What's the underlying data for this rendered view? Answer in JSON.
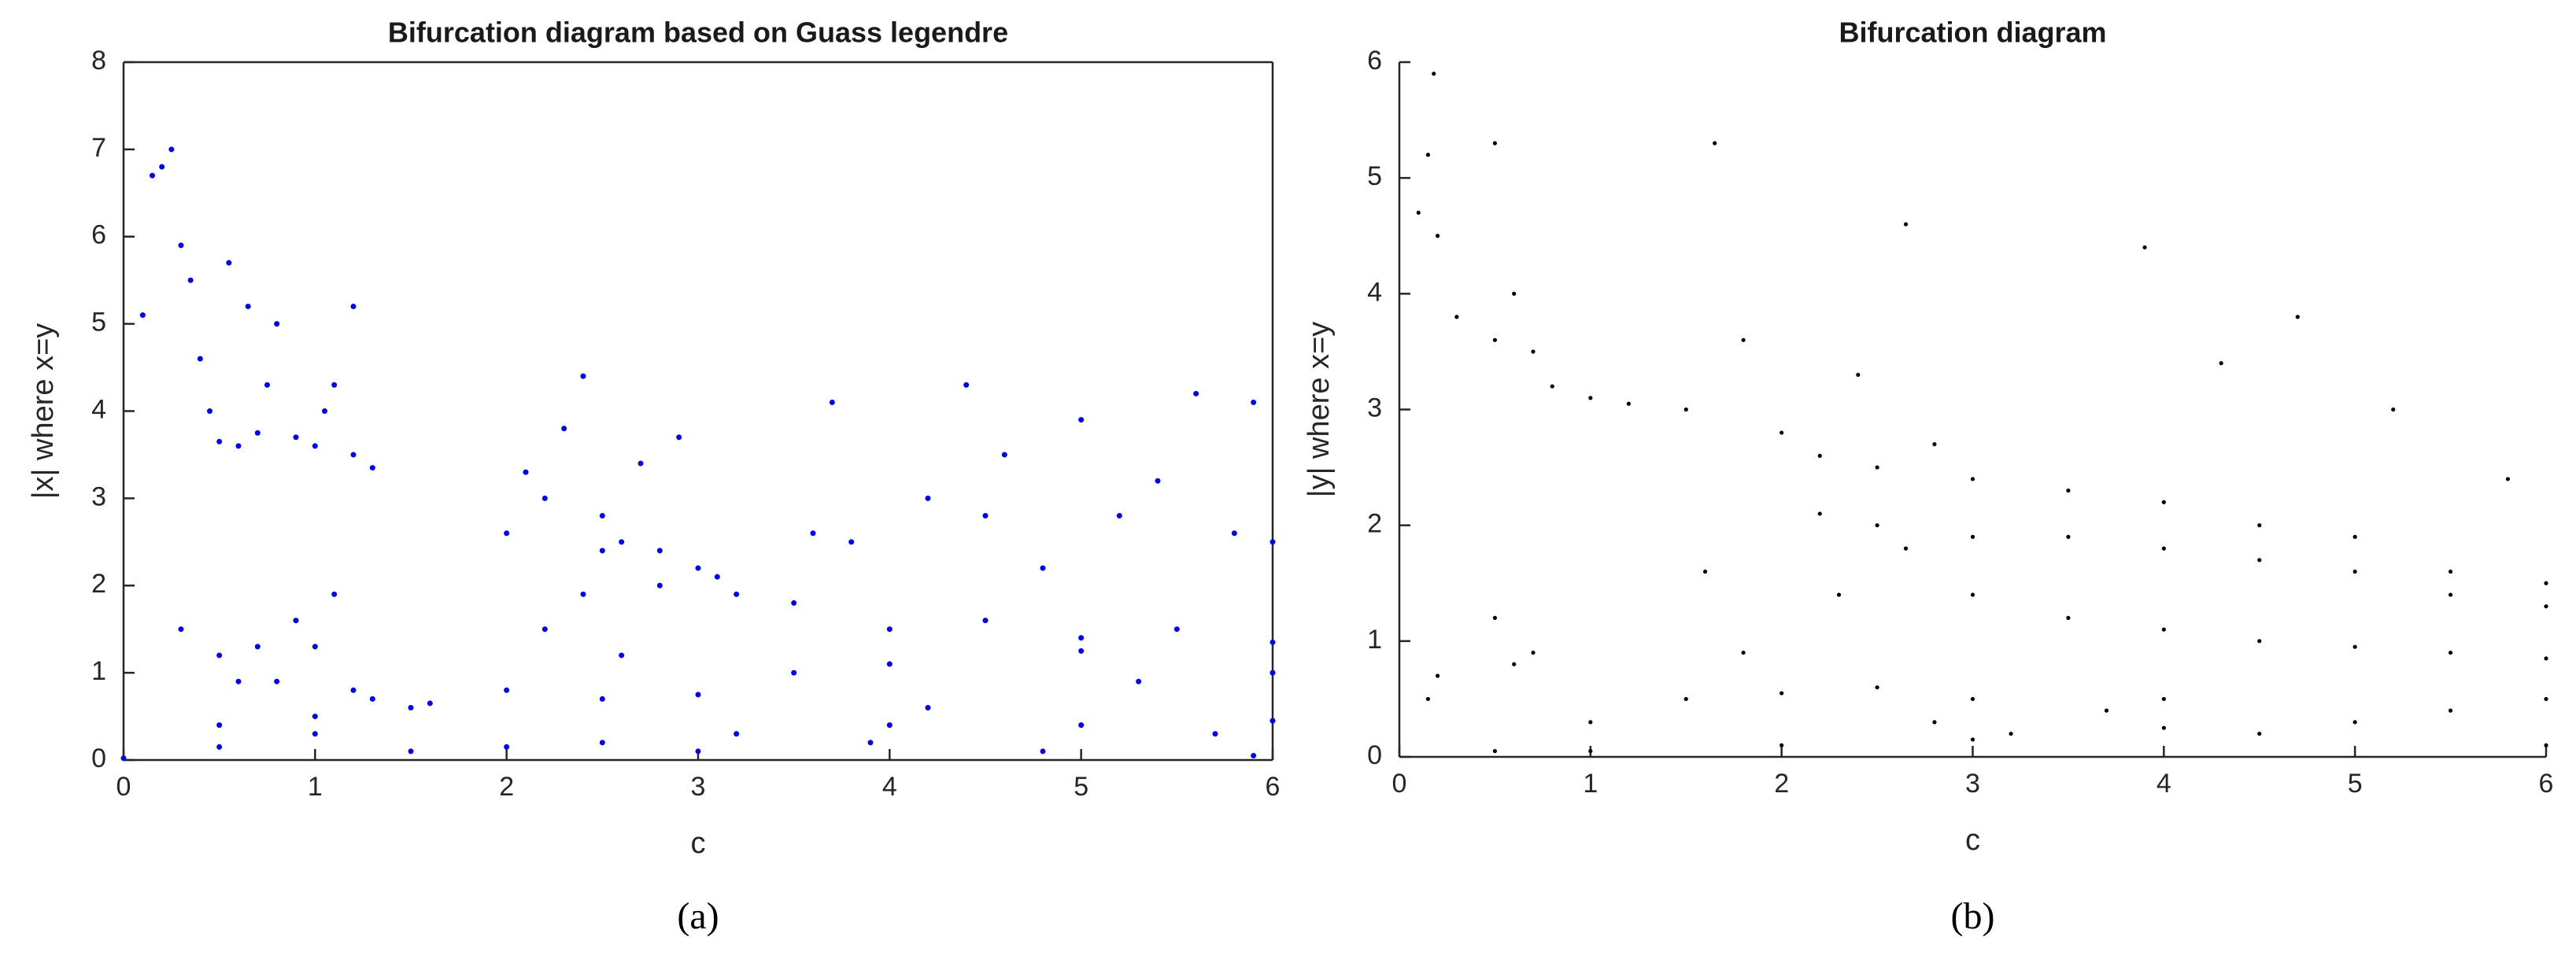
{
  "chart_data": [
    {
      "type": "scatter",
      "title": "Bifurcation diagram based on Guass legendre",
      "x_label": "c",
      "y_label": "|x| where x=y",
      "caption": "(a)",
      "color": "#0000ff",
      "box": true,
      "xlim": [
        0,
        6
      ],
      "xticks": [
        0,
        1,
        2,
        3,
        4,
        5,
        6
      ],
      "ylim": [
        0,
        8
      ],
      "yticks": [
        0,
        1,
        2,
        3,
        4,
        5,
        6,
        7,
        8
      ],
      "x": [
        0.1,
        0.15,
        0.2,
        0.25,
        0.3,
        0.35,
        0.4,
        0.45,
        0.5,
        0.6,
        0.7,
        0.75,
        0.8,
        0.9,
        1.0,
        1.05,
        1.1,
        1.2,
        1.3,
        1.2,
        0.55,
        0.65,
        0.3,
        0.5,
        0.6,
        0.7,
        0.8,
        0.9,
        1.0,
        1.1,
        1.2,
        1.3,
        1.6,
        2.0,
        2.5,
        3.0,
        3.5,
        4.0,
        5.0,
        6.0,
        0.0,
        0.5,
        1.0,
        1.5,
        2.0,
        2.5,
        3.0,
        3.2,
        4.0,
        5.0,
        6.0,
        0.5,
        1.0,
        1.5,
        2.0,
        2.1,
        2.2,
        2.3,
        2.4,
        2.5,
        2.6,
        2.7,
        2.8,
        2.9,
        3.0,
        2.5,
        2.2,
        2.4,
        2.6,
        2.8,
        3.1,
        3.2,
        3.5,
        3.7,
        3.8,
        4.0,
        4.2,
        4.5,
        4.6,
        4.8,
        5.0,
        5.0,
        5.2,
        5.5,
        5.6,
        5.8,
        6.0,
        6.0,
        4.2,
        4.5,
        5.3,
        5.7,
        3.9,
        4.8,
        5.9,
        3.6,
        4.4,
        5.4,
        5.9
      ],
      "values": [
        5.1,
        6.7,
        6.8,
        7.0,
        5.9,
        5.5,
        4.6,
        4.0,
        3.65,
        3.6,
        3.75,
        4.3,
        5.0,
        3.7,
        3.6,
        4.0,
        4.3,
        3.5,
        3.35,
        5.2,
        5.7,
        5.2,
        1.5,
        1.2,
        0.9,
        1.3,
        0.9,
        1.6,
        1.3,
        1.9,
        0.8,
        0.7,
        0.65,
        0.8,
        0.7,
        0.75,
        1.0,
        1.1,
        1.25,
        1.35,
        0.02,
        0.15,
        0.3,
        0.1,
        0.15,
        0.2,
        0.1,
        0.3,
        0.4,
        0.4,
        0.45,
        0.4,
        0.5,
        0.6,
        2.6,
        3.3,
        3.0,
        3.8,
        4.4,
        2.8,
        2.5,
        3.4,
        2.4,
        3.7,
        2.2,
        2.4,
        1.5,
        1.9,
        1.2,
        2.0,
        2.1,
        1.9,
        1.8,
        4.1,
        2.5,
        1.5,
        3.0,
        1.6,
        3.5,
        2.2,
        1.4,
        3.9,
        2.8,
        1.5,
        4.2,
        2.6,
        2.5,
        1.0,
        0.6,
        2.8,
        0.9,
        0.3,
        0.2,
        0.1,
        0.05,
        2.6,
        4.3,
        3.2,
        4.1
      ]
    },
    {
      "type": "scatter",
      "title": "Bifurcation diagram",
      "x_label": "c",
      "y_label": "|y| where x=y",
      "caption": "(b)",
      "color": "#000000",
      "box": false,
      "xlim": [
        0,
        6
      ],
      "xticks": [
        0,
        1,
        2,
        3,
        4,
        5,
        6
      ],
      "ylim": [
        0,
        6
      ],
      "yticks": [
        0,
        1,
        2,
        3,
        4,
        5,
        6
      ],
      "x": [
        0.1,
        0.15,
        0.18,
        0.2,
        0.3,
        0.5,
        0.5,
        0.6,
        0.7,
        0.8,
        1.0,
        1.2,
        1.5,
        1.65,
        1.8,
        2.0,
        2.2,
        2.4,
        2.65,
        2.5,
        2.8,
        3.0,
        3.5,
        3.9,
        4.0,
        4.3,
        4.5,
        4.7,
        5.0,
        5.2,
        5.5,
        5.8,
        6.0,
        2.2,
        2.5,
        3.0,
        3.5,
        4.0,
        4.5,
        5.0,
        5.5,
        6.0,
        2.65,
        3.0,
        3.5,
        4.0,
        4.5,
        5.0,
        5.5,
        6.0,
        0.15,
        0.2,
        0.5,
        0.6,
        0.7,
        1.0,
        1.5,
        2.0,
        2.5,
        3.0,
        1.6,
        1.8,
        2.3,
        2.8,
        3.2,
        3.7,
        4.0,
        4.5,
        5.0,
        5.5,
        6.0,
        0.5,
        1.0,
        2.0,
        3.0,
        4.0,
        6.0
      ],
      "values": [
        4.7,
        5.2,
        5.9,
        4.5,
        3.8,
        3.6,
        5.3,
        4.0,
        3.5,
        3.2,
        3.1,
        3.05,
        3.0,
        5.3,
        3.6,
        2.8,
        2.6,
        3.3,
        4.6,
        2.5,
        2.7,
        2.4,
        2.3,
        4.4,
        2.2,
        3.4,
        2.0,
        3.8,
        1.9,
        3.0,
        1.6,
        2.4,
        1.5,
        2.1,
        2.0,
        1.9,
        1.9,
        1.8,
        1.7,
        1.6,
        1.4,
        1.3,
        1.8,
        1.4,
        1.2,
        1.1,
        1.0,
        0.95,
        0.9,
        0.85,
        0.5,
        0.7,
        1.2,
        0.8,
        0.9,
        0.3,
        0.5,
        0.55,
        0.6,
        0.5,
        1.6,
        0.9,
        1.4,
        0.3,
        0.2,
        0.4,
        0.5,
        0.2,
        0.3,
        0.4,
        0.5,
        0.05,
        0.05,
        0.1,
        0.15,
        0.25,
        0.1
      ]
    }
  ]
}
